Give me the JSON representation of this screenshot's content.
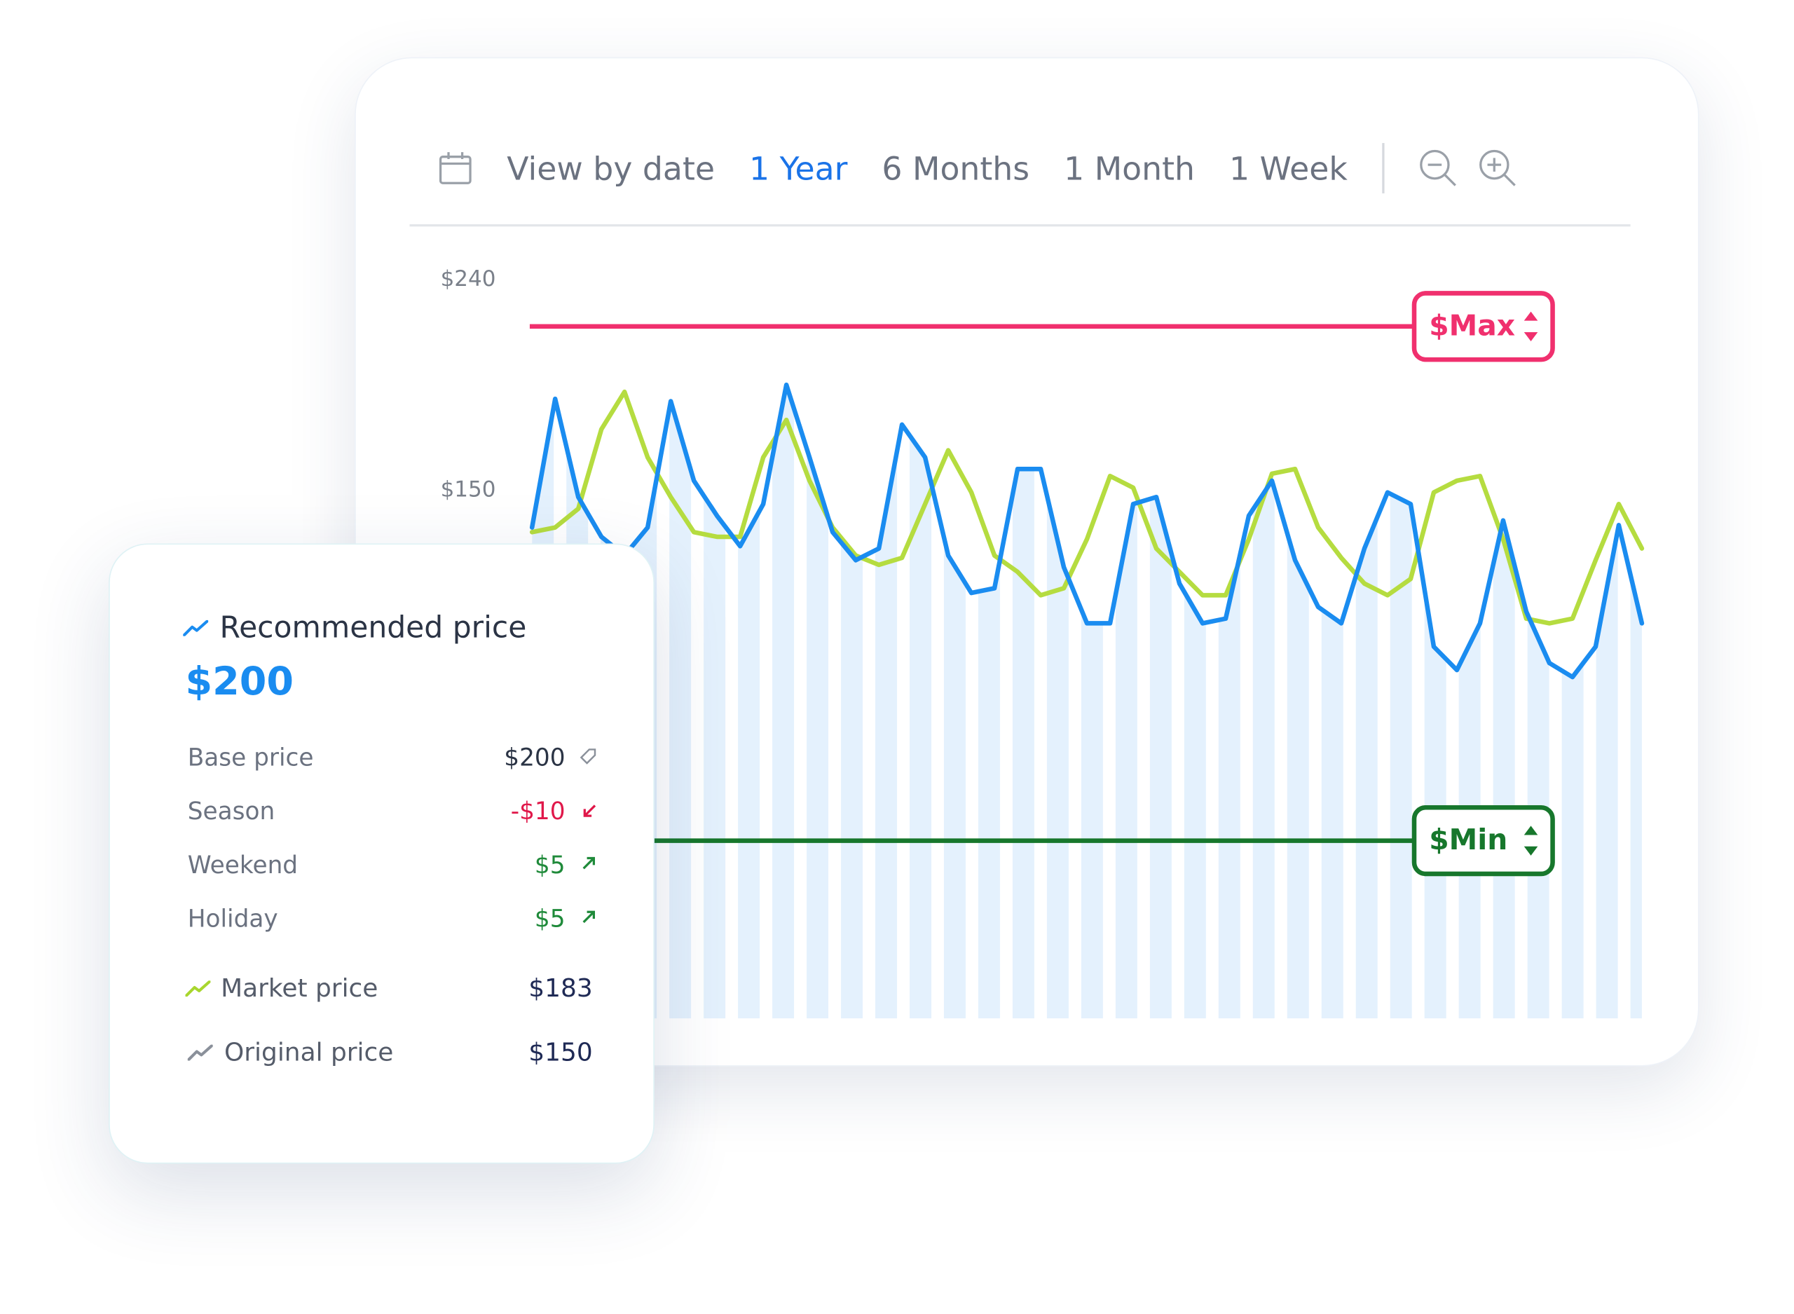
{
  "toolbar": {
    "label": "View by date",
    "ranges": [
      "1 Year",
      "6 Months",
      "1 Month",
      "1 Week"
    ]
  },
  "chart_data": {
    "type": "line",
    "ylim": [
      -76,
      250
    ],
    "yticks": [
      {
        "value": 240,
        "label": "$240"
      },
      {
        "value": 150,
        "label": "$150"
      }
    ],
    "series": [
      {
        "color": "#1a8cf0",
        "area": true,
        "values": [
          134,
          189,
          147,
          130,
          122,
          134,
          188,
          154,
          139,
          126,
          144,
          195,
          164,
          132,
          120,
          125,
          178,
          164,
          122,
          106,
          108,
          159,
          159,
          117,
          93,
          93,
          144,
          147,
          110,
          93,
          95,
          139,
          154,
          120,
          100,
          93,
          125,
          149,
          144,
          83,
          73,
          93,
          137,
          98,
          76,
          70,
          83,
          135,
          93
        ]
      },
      {
        "color": "#b5dc40",
        "values": [
          132,
          134,
          142,
          176,
          192,
          164,
          147,
          132,
          130,
          130,
          164,
          180,
          154,
          134,
          122,
          118,
          121,
          144,
          167,
          149,
          122,
          115,
          105,
          108,
          129,
          156,
          151,
          125,
          115,
          105,
          105,
          129,
          157,
          159,
          134,
          121,
          110,
          105,
          112,
          149,
          154,
          156,
          129,
          95,
          93,
          95,
          120,
          144,
          125
        ]
      }
    ],
    "thresholds": [
      {
        "label": "$Max",
        "value": 220,
        "color": "#f0306e"
      },
      {
        "label": "$Min",
        "value": 0,
        "color": "#17772c"
      }
    ]
  },
  "panel": {
    "title": "Recommended price",
    "value": "$200",
    "rows": [
      {
        "label": "Base price",
        "value": "$200"
      },
      {
        "label": "Season",
        "value": "-$10"
      },
      {
        "label": "Weekend",
        "value": "$5"
      },
      {
        "label": "Holiday",
        "value": "$5"
      }
    ],
    "prices": [
      {
        "label": "Market price",
        "value": "$183"
      },
      {
        "label": "Original price",
        "value": "$150"
      }
    ]
  }
}
